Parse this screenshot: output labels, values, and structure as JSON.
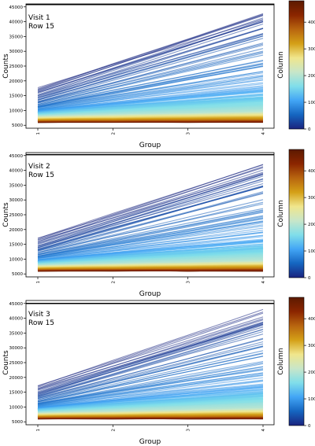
{
  "chart_data": [
    {
      "type": "line",
      "panel_text": [
        "Visit 1",
        "Row 15"
      ],
      "xlabel": "Group",
      "ylabel": "Counts",
      "x": [
        1,
        2,
        3,
        4
      ],
      "xticks": [
        "1",
        "2",
        "3",
        "4"
      ],
      "ylim": [
        4000,
        46000
      ],
      "yticks": [
        5000,
        10000,
        15000,
        20000,
        25000,
        30000,
        35000,
        40000,
        45000
      ],
      "hline": 45800,
      "colorbar": {
        "label": "Column",
        "range": [
          0,
          480
        ],
        "ticks": [
          0,
          100,
          200,
          300,
          400
        ]
      },
      "line_count": 480,
      "series_sample": [
        {
          "name": "",
          "column": 0,
          "values": [
            17800,
            26100,
            34400,
            42700
          ]
        },
        {
          "name": "",
          "column": 20,
          "values": [
            15000,
            23000,
            31000,
            39000
          ]
        },
        {
          "name": "",
          "column": 40,
          "values": [
            13000,
            20000,
            27000,
            34000
          ]
        },
        {
          "name": "",
          "column": 60,
          "values": [
            11500,
            16500,
            21500,
            26500
          ]
        },
        {
          "name": "",
          "column": 100,
          "values": [
            10000,
            12500,
            15000,
            17500
          ]
        },
        {
          "name": "",
          "column": 200,
          "values": [
            8500,
            9000,
            9500,
            10000
          ]
        },
        {
          "name": "",
          "column": 350,
          "values": [
            7000,
            7100,
            7200,
            7300
          ]
        },
        {
          "name": "",
          "column": 470,
          "values": [
            6200,
            6200,
            6200,
            6200
          ]
        }
      ]
    },
    {
      "type": "line",
      "panel_text": [
        "Visit 2",
        "Row 15"
      ],
      "xlabel": "Group",
      "ylabel": "Counts",
      "x": [
        1,
        2,
        3,
        4
      ],
      "xticks": [
        "1",
        "2",
        "3",
        "4"
      ],
      "ylim": [
        4000,
        46000
      ],
      "yticks": [
        5000,
        10000,
        15000,
        20000,
        25000,
        30000,
        35000,
        40000,
        45000
      ],
      "hline": 45300,
      "colorbar": {
        "label": "Column",
        "range": [
          0,
          480
        ],
        "ticks": [
          0,
          100,
          200,
          300,
          400
        ]
      },
      "line_count": 480,
      "series_sample": [
        {
          "name": "",
          "column": 0,
          "values": [
            17300,
            25300,
            33300,
            41300
          ]
        },
        {
          "name": "",
          "column": 20,
          "values": [
            14500,
            22300,
            30100,
            37900
          ]
        },
        {
          "name": "",
          "column": 40,
          "values": [
            12800,
            19500,
            26200,
            32900
          ]
        },
        {
          "name": "",
          "column": 60,
          "values": [
            11200,
            16000,
            20800,
            25600
          ]
        },
        {
          "name": "",
          "column": 100,
          "values": [
            9800,
            12200,
            14600,
            17000
          ]
        },
        {
          "name": "",
          "column": 200,
          "values": [
            8400,
            8900,
            9400,
            9900
          ]
        },
        {
          "name": "",
          "column": 350,
          "values": [
            7000,
            7100,
            7200,
            7300
          ]
        },
        {
          "name": "",
          "column": 470,
          "values": [
            6200,
            6200,
            6200,
            6200
          ]
        }
      ]
    },
    {
      "type": "line",
      "panel_text": [
        "Visit 3",
        "Row 15"
      ],
      "xlabel": "Group",
      "ylabel": "Counts",
      "x": [
        1,
        2,
        3,
        4
      ],
      "xticks": [
        "1",
        "2",
        "3",
        "4"
      ],
      "ylim": [
        4000,
        46000
      ],
      "yticks": [
        5000,
        10000,
        15000,
        20000,
        25000,
        30000,
        35000,
        40000,
        45000
      ],
      "hline": 45000,
      "colorbar": {
        "label": "Column",
        "range": [
          0,
          480
        ],
        "ticks": [
          0,
          100,
          200,
          300,
          400
        ]
      },
      "line_count": 480,
      "series_sample": [
        {
          "name": "",
          "column": 0,
          "values": [
            17300,
            25600,
            33900,
            42200
          ]
        },
        {
          "name": "",
          "column": 20,
          "values": [
            14600,
            22400,
            30200,
            38000
          ]
        },
        {
          "name": "",
          "column": 40,
          "values": [
            12900,
            19600,
            26300,
            33000
          ]
        },
        {
          "name": "",
          "column": 60,
          "values": [
            11300,
            16100,
            20900,
            25700
          ]
        },
        {
          "name": "",
          "column": 100,
          "values": [
            9900,
            12300,
            14700,
            17100
          ]
        },
        {
          "name": "",
          "column": 200,
          "values": [
            8500,
            9000,
            9500,
            10000
          ]
        },
        {
          "name": "",
          "column": 350,
          "values": [
            7000,
            7100,
            7200,
            7300
          ]
        },
        {
          "name": "",
          "column": 470,
          "values": [
            6200,
            6200,
            6200,
            6200
          ]
        }
      ]
    }
  ],
  "colormap": {
    "stops": [
      "#1a237e",
      "#1565c0",
      "#42a5f5",
      "#80deea",
      "#c8e6c9",
      "#f0e68c",
      "#d4a017",
      "#b8650f",
      "#8b2500",
      "#5c1a00"
    ]
  }
}
